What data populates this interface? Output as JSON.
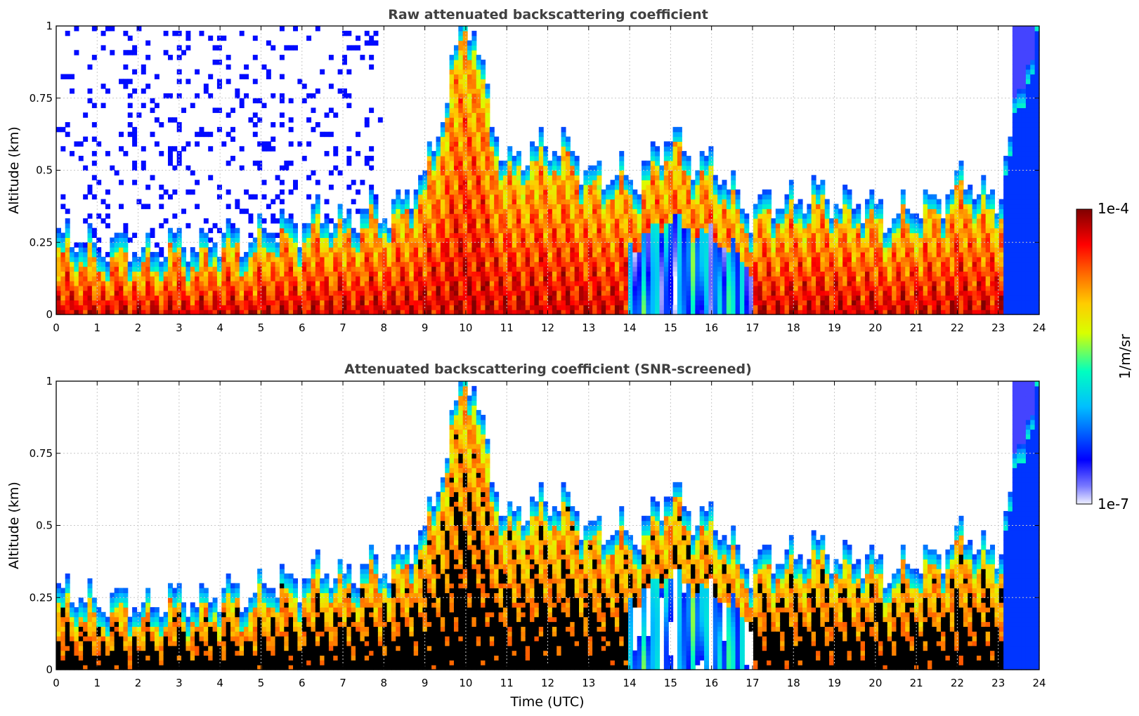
{
  "chart_data": [
    {
      "type": "heatmap",
      "title": "Raw attenuated backscattering coefficient",
      "xlabel": "",
      "ylabel": "Altitude (km)",
      "xlim": [
        0,
        24
      ],
      "ylim": [
        0,
        1
      ],
      "x_ticks": [
        "0",
        "1",
        "2",
        "3",
        "4",
        "5",
        "6",
        "7",
        "8",
        "9",
        "10",
        "11",
        "12",
        "13",
        "14",
        "15",
        "16",
        "17",
        "18",
        "19",
        "20",
        "21",
        "22",
        "23",
        "24"
      ],
      "y_ticks": [
        "0",
        "0.25",
        "0.5",
        "0.75",
        "1"
      ],
      "grid": true,
      "screened": false,
      "colorscale": "jet",
      "colorbar": {
        "min": "1e-7",
        "max": "1e-4",
        "label": "1/m/sr",
        "scale": "log"
      },
      "boundary_layer_top_km": [
        [
          0,
          0.2
        ],
        [
          2,
          0.17
        ],
        [
          3,
          0.18
        ],
        [
          4,
          0.2
        ],
        [
          5,
          0.22
        ],
        [
          6,
          0.27
        ],
        [
          7,
          0.28
        ],
        [
          8,
          0.3
        ],
        [
          9,
          0.4
        ],
        [
          10,
          1.0
        ],
        [
          11,
          0.45
        ],
        [
          12,
          0.55
        ],
        [
          13,
          0.45
        ],
        [
          14,
          0.4
        ],
        [
          15,
          0.55
        ],
        [
          16,
          0.45
        ],
        [
          17,
          0.3
        ],
        [
          18,
          0.35
        ],
        [
          19,
          0.35
        ],
        [
          20,
          0.3
        ],
        [
          21,
          0.3
        ],
        [
          22,
          0.4
        ],
        [
          23,
          0.35
        ],
        [
          24,
          1.0
        ]
      ]
    },
    {
      "type": "heatmap",
      "title": "Attenuated backscattering coefficient (SNR-screened)",
      "xlabel": "Time (UTC)",
      "ylabel": "Altitude (km)",
      "xlim": [
        0,
        24
      ],
      "ylim": [
        0,
        1
      ],
      "x_ticks": [
        "0",
        "1",
        "2",
        "3",
        "4",
        "5",
        "6",
        "7",
        "8",
        "9",
        "10",
        "11",
        "12",
        "13",
        "14",
        "15",
        "16",
        "17",
        "18",
        "19",
        "20",
        "21",
        "22",
        "23",
        "24"
      ],
      "y_ticks": [
        "0",
        "0.25",
        "0.5",
        "0.75",
        "1"
      ],
      "grid": true,
      "screened": true,
      "colorscale": "jet",
      "colorbar": {
        "min": "1e-7",
        "max": "1e-4",
        "label": "1/m/sr",
        "scale": "log"
      }
    }
  ],
  "colorbar": {
    "max_label": "1e-4",
    "min_label": "1e-7",
    "units_label": "1/m/sr"
  },
  "colors": {
    "jet": [
      "#eef0ff",
      "#0000ff",
      "#00bfff",
      "#00ffc0",
      "#ffff00",
      "#ff8000",
      "#ff0000",
      "#800000"
    ],
    "screened_saturation": "#000000",
    "title_color": "#404040",
    "grid_color": "#c8c8c8"
  }
}
